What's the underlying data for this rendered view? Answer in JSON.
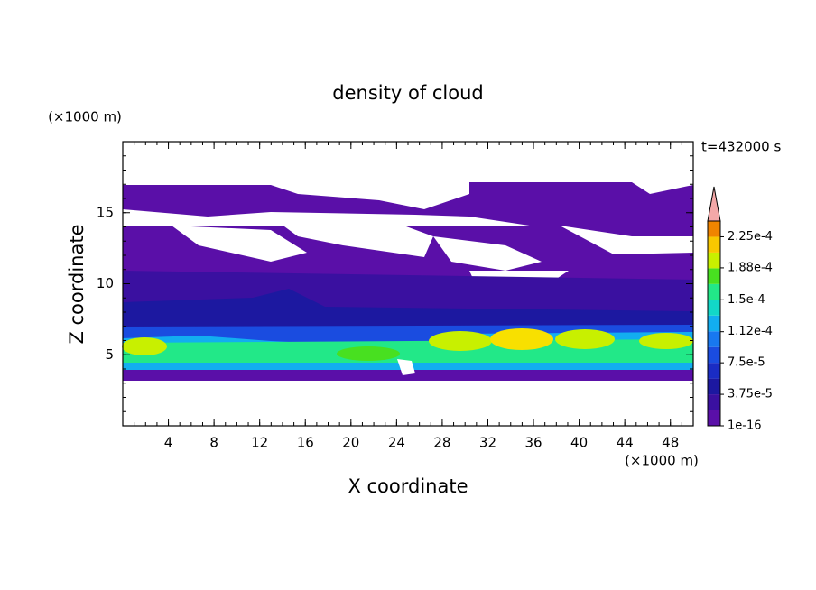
{
  "chart_data": {
    "type": "contour",
    "title": "density of cloud",
    "x_label": "X coordinate",
    "y_label": "Z coordinate",
    "x_unit": "(×1000 m)",
    "y_unit": "(×1000 m)",
    "time_label": "t=432000 s",
    "xlim": [
      0,
      50
    ],
    "xticks": [
      4,
      8,
      12,
      16,
      20,
      24,
      28,
      32,
      36,
      40,
      44,
      48
    ],
    "ylim": [
      0,
      20
    ],
    "yticks": [
      5,
      10,
      15
    ],
    "colorbar": {
      "clim": [
        1e-16,
        0.00024375
      ],
      "ticks": [
        {
          "value": 1e-16,
          "label": "1e-16"
        },
        {
          "value": 3.75e-05,
          "label": "3.75e-5"
        },
        {
          "value": 7.5e-05,
          "label": "7.5e-5"
        },
        {
          "value": 0.000112,
          "label": "1.12e-4"
        },
        {
          "value": 0.00015,
          "label": "1.5e-4"
        },
        {
          "value": 0.000188,
          "label": "1.88e-4"
        },
        {
          "value": 0.000225,
          "label": "2.25e-4"
        }
      ],
      "colors": [
        "#5a0fa8",
        "#3a10a0",
        "#1c18a0",
        "#1a2cc4",
        "#1a4ce0",
        "#1878f0",
        "#12aef0",
        "#12d8c8",
        "#22e888",
        "#48e020",
        "#c8f000",
        "#f8c800",
        "#f08400",
        "#f04810",
        "#e01010"
      ],
      "extend_color": "#f4a8a8"
    }
  }
}
